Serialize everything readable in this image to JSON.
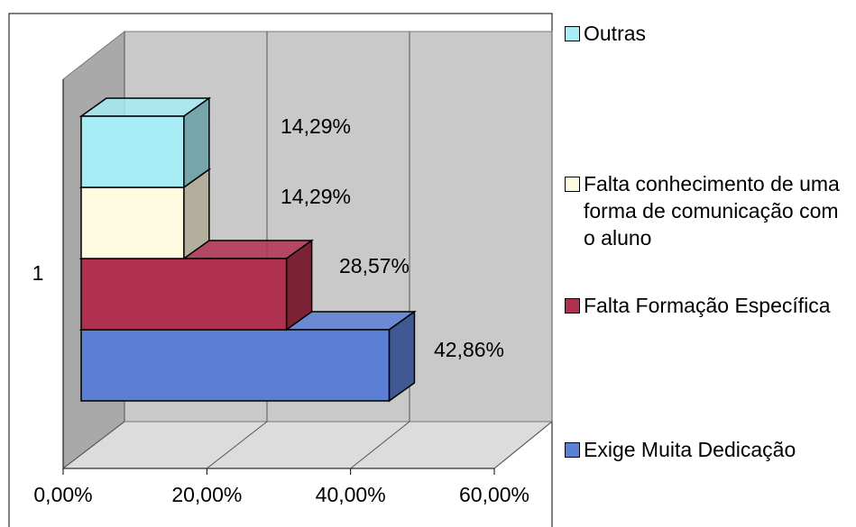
{
  "chart_data": {
    "type": "bar3d",
    "orientation": "horizontal",
    "categories": [
      "1"
    ],
    "series": [
      {
        "name": "Exige Muita Dedicação",
        "color": "#5b7fd4",
        "values": [
          42.86
        ],
        "value_labels": [
          "42,86%"
        ]
      },
      {
        "name": "Falta Formação Específica",
        "color": "#b0304f",
        "values": [
          28.57
        ],
        "value_labels": [
          "28,57%"
        ]
      },
      {
        "name": "Falta conhecimento de uma forma de comunicação com o aluno",
        "color": "#fffbe0",
        "values": [
          14.29
        ],
        "value_labels": [
          "14,29%"
        ]
      },
      {
        "name": "Outras",
        "color": "#a8ecf5",
        "values": [
          14.29
        ],
        "value_labels": [
          "14,29%"
        ]
      }
    ],
    "xlim": [
      0,
      60
    ],
    "xticks": [
      {
        "value": 0,
        "label": "0,00%"
      },
      {
        "value": 20,
        "label": "20,00%"
      },
      {
        "value": 40,
        "label": "40,00%"
      },
      {
        "value": 60,
        "label": "60,00%"
      }
    ],
    "grid": true
  }
}
